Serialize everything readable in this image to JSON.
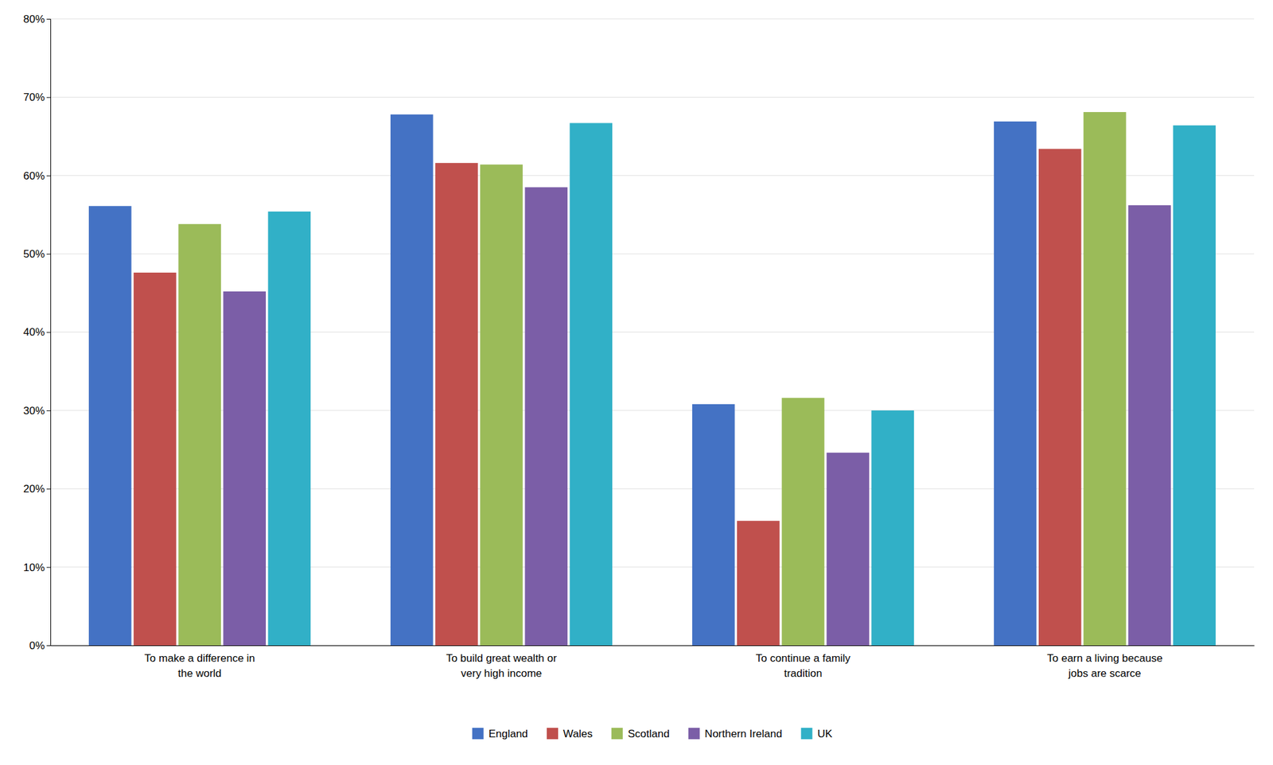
{
  "chart_data": {
    "type": "bar",
    "categories": [
      "To make a difference in\nthe world",
      "To build great wealth or\nvery high income",
      "To continue a family\ntradition",
      "To earn a living because\njobs are scarce"
    ],
    "series": [
      {
        "name": "England",
        "color": "#4472C4",
        "values": [
          0.561,
          0.678,
          0.308,
          0.669
        ]
      },
      {
        "name": "Wales",
        "color": "#C0504D",
        "values": [
          0.476,
          0.616,
          0.159,
          0.634
        ]
      },
      {
        "name": "Scotland",
        "color": "#9BBB59",
        "values": [
          0.538,
          0.614,
          0.316,
          0.681
        ]
      },
      {
        "name": "Northern Ireland",
        "color": "#7B5EA7",
        "values": [
          0.452,
          0.585,
          0.246,
          0.562
        ]
      },
      {
        "name": "UK",
        "color": "#31B0C7",
        "values": [
          0.554,
          0.667,
          0.3,
          0.664
        ]
      }
    ],
    "ylim": [
      0,
      0.8
    ],
    "yticks": [
      {
        "value": 0.0,
        "label": "0%"
      },
      {
        "value": 0.1,
        "label": "10%"
      },
      {
        "value": 0.2,
        "label": "20%"
      },
      {
        "value": 0.3,
        "label": "30%"
      },
      {
        "value": 0.4,
        "label": "40%"
      },
      {
        "value": 0.5,
        "label": "50%"
      },
      {
        "value": 0.6,
        "label": "60%"
      },
      {
        "value": 0.7,
        "label": "70%"
      },
      {
        "value": 0.8,
        "label": "80%"
      }
    ],
    "grid": true,
    "legend": "bottom"
  }
}
